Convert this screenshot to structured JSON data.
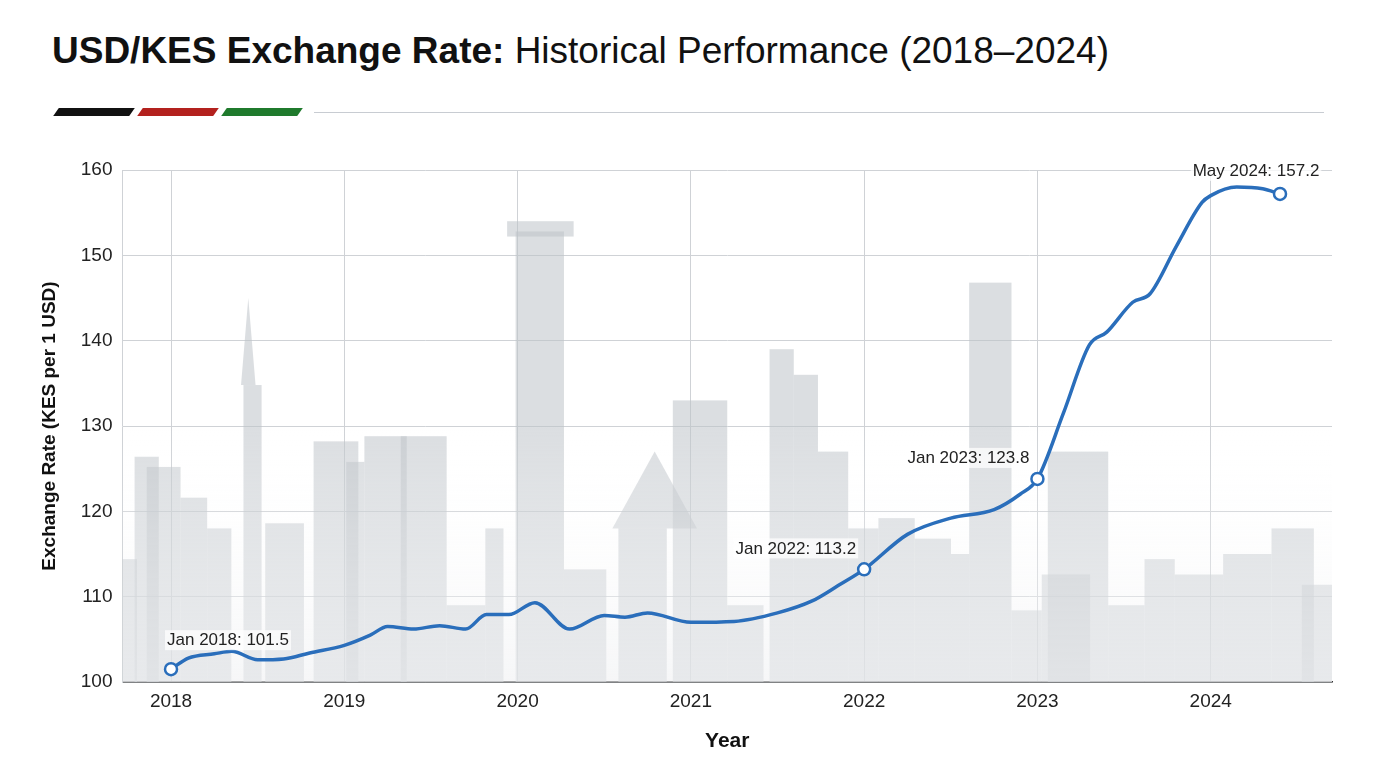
{
  "chart_data": {
    "type": "line",
    "title": "USD/KES Exchange Rate: Historical Performance (2018–2024)",
    "x_label": "Year",
    "y_label": "Exchange Rate (KES per 1 USD)",
    "x": [
      2018.0,
      2018.1,
      2018.25,
      2018.35,
      2018.5,
      2018.65,
      2018.8,
      2019.0,
      2019.15,
      2019.25,
      2019.4,
      2019.55,
      2019.7,
      2019.82,
      2019.95,
      2020.1,
      2020.3,
      2020.5,
      2020.62,
      2020.75,
      2021.0,
      2021.25,
      2021.5,
      2021.7,
      2021.85,
      2022.0,
      2022.25,
      2022.5,
      2022.75,
      2022.9,
      2023.0,
      2023.15,
      2023.3,
      2023.4,
      2023.55,
      2023.65,
      2023.8,
      2023.95,
      2024.0,
      2024.15,
      2024.3,
      2024.4
    ],
    "values": [
      101.5,
      102.8,
      103.3,
      103.6,
      102.6,
      102.7,
      103.4,
      104.3,
      105.5,
      106.5,
      106.2,
      106.6,
      106.2,
      107.9,
      107.9,
      109.3,
      106.2,
      107.8,
      107.6,
      108.1,
      107.0,
      107.1,
      108.1,
      109.5,
      111.3,
      113.2,
      117.3,
      119.2,
      120.2,
      122.0,
      123.8,
      131.5,
      139.5,
      141.0,
      144.5,
      145.5,
      151.0,
      156.2,
      157.0,
      158.0,
      157.8,
      157.2
    ],
    "color": "#2a6ebb",
    "annotations": [
      {
        "x": 2018.0,
        "y": 101.5,
        "label": "Jan 2018: 101.5"
      },
      {
        "x": 2022.0,
        "y": 113.2,
        "label": "Jan 2022: 113.2"
      },
      {
        "x": 2023.0,
        "y": 123.8,
        "label": "Jan 2023: 123.8"
      },
      {
        "x": 2024.4,
        "y": 157.2,
        "label": "May 2024: 157.2"
      }
    ],
    "xlim": [
      2017.72,
      2024.7
    ],
    "xticks": [
      2018,
      2019,
      2020,
      2021,
      2022,
      2023,
      2024
    ],
    "ylim": [
      100,
      160
    ],
    "yticks": [
      100,
      110,
      120,
      130,
      140,
      150,
      160
    ],
    "grid": true
  }
}
